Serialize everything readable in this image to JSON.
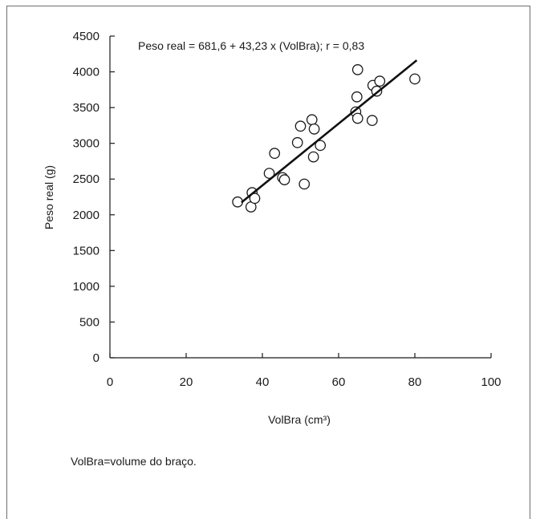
{
  "chart_data": {
    "type": "scatter",
    "title": "",
    "xlabel": "VolBra (cm³)",
    "ylabel": "Peso real (g)",
    "xlim": [
      0,
      100
    ],
    "ylim": [
      0,
      4500
    ],
    "xticks": [
      0,
      20,
      40,
      60,
      80,
      100
    ],
    "yticks": [
      0,
      500,
      1000,
      1500,
      2000,
      2500,
      3000,
      3500,
      4000,
      4500
    ],
    "grid": false,
    "annotation": "Peso real = 681,6 + 43,23 x (VolBra); r = 0,83",
    "regression": {
      "intercept": 681.6,
      "slope": 43.23,
      "x_range": [
        34.5,
        80.5
      ]
    },
    "points": [
      {
        "x": 33.5,
        "y": 2180
      },
      {
        "x": 37.0,
        "y": 2110
      },
      {
        "x": 37.3,
        "y": 2310
      },
      {
        "x": 38.0,
        "y": 2230
      },
      {
        "x": 41.8,
        "y": 2580
      },
      {
        "x": 43.2,
        "y": 2860
      },
      {
        "x": 45.3,
        "y": 2520
      },
      {
        "x": 45.8,
        "y": 2490
      },
      {
        "x": 49.2,
        "y": 3010
      },
      {
        "x": 50.0,
        "y": 3240
      },
      {
        "x": 51.0,
        "y": 2430
      },
      {
        "x": 53.0,
        "y": 3330
      },
      {
        "x": 53.4,
        "y": 2810
      },
      {
        "x": 53.6,
        "y": 3200
      },
      {
        "x": 55.2,
        "y": 2970
      },
      {
        "x": 64.5,
        "y": 3440
      },
      {
        "x": 64.8,
        "y": 3650
      },
      {
        "x": 65.0,
        "y": 3350
      },
      {
        "x": 65.0,
        "y": 4030
      },
      {
        "x": 68.8,
        "y": 3320
      },
      {
        "x": 69.0,
        "y": 3810
      },
      {
        "x": 70.0,
        "y": 3730
      },
      {
        "x": 70.8,
        "y": 3870
      },
      {
        "x": 80.0,
        "y": 3900
      }
    ]
  },
  "footnote": "VolBra=volume do braço."
}
